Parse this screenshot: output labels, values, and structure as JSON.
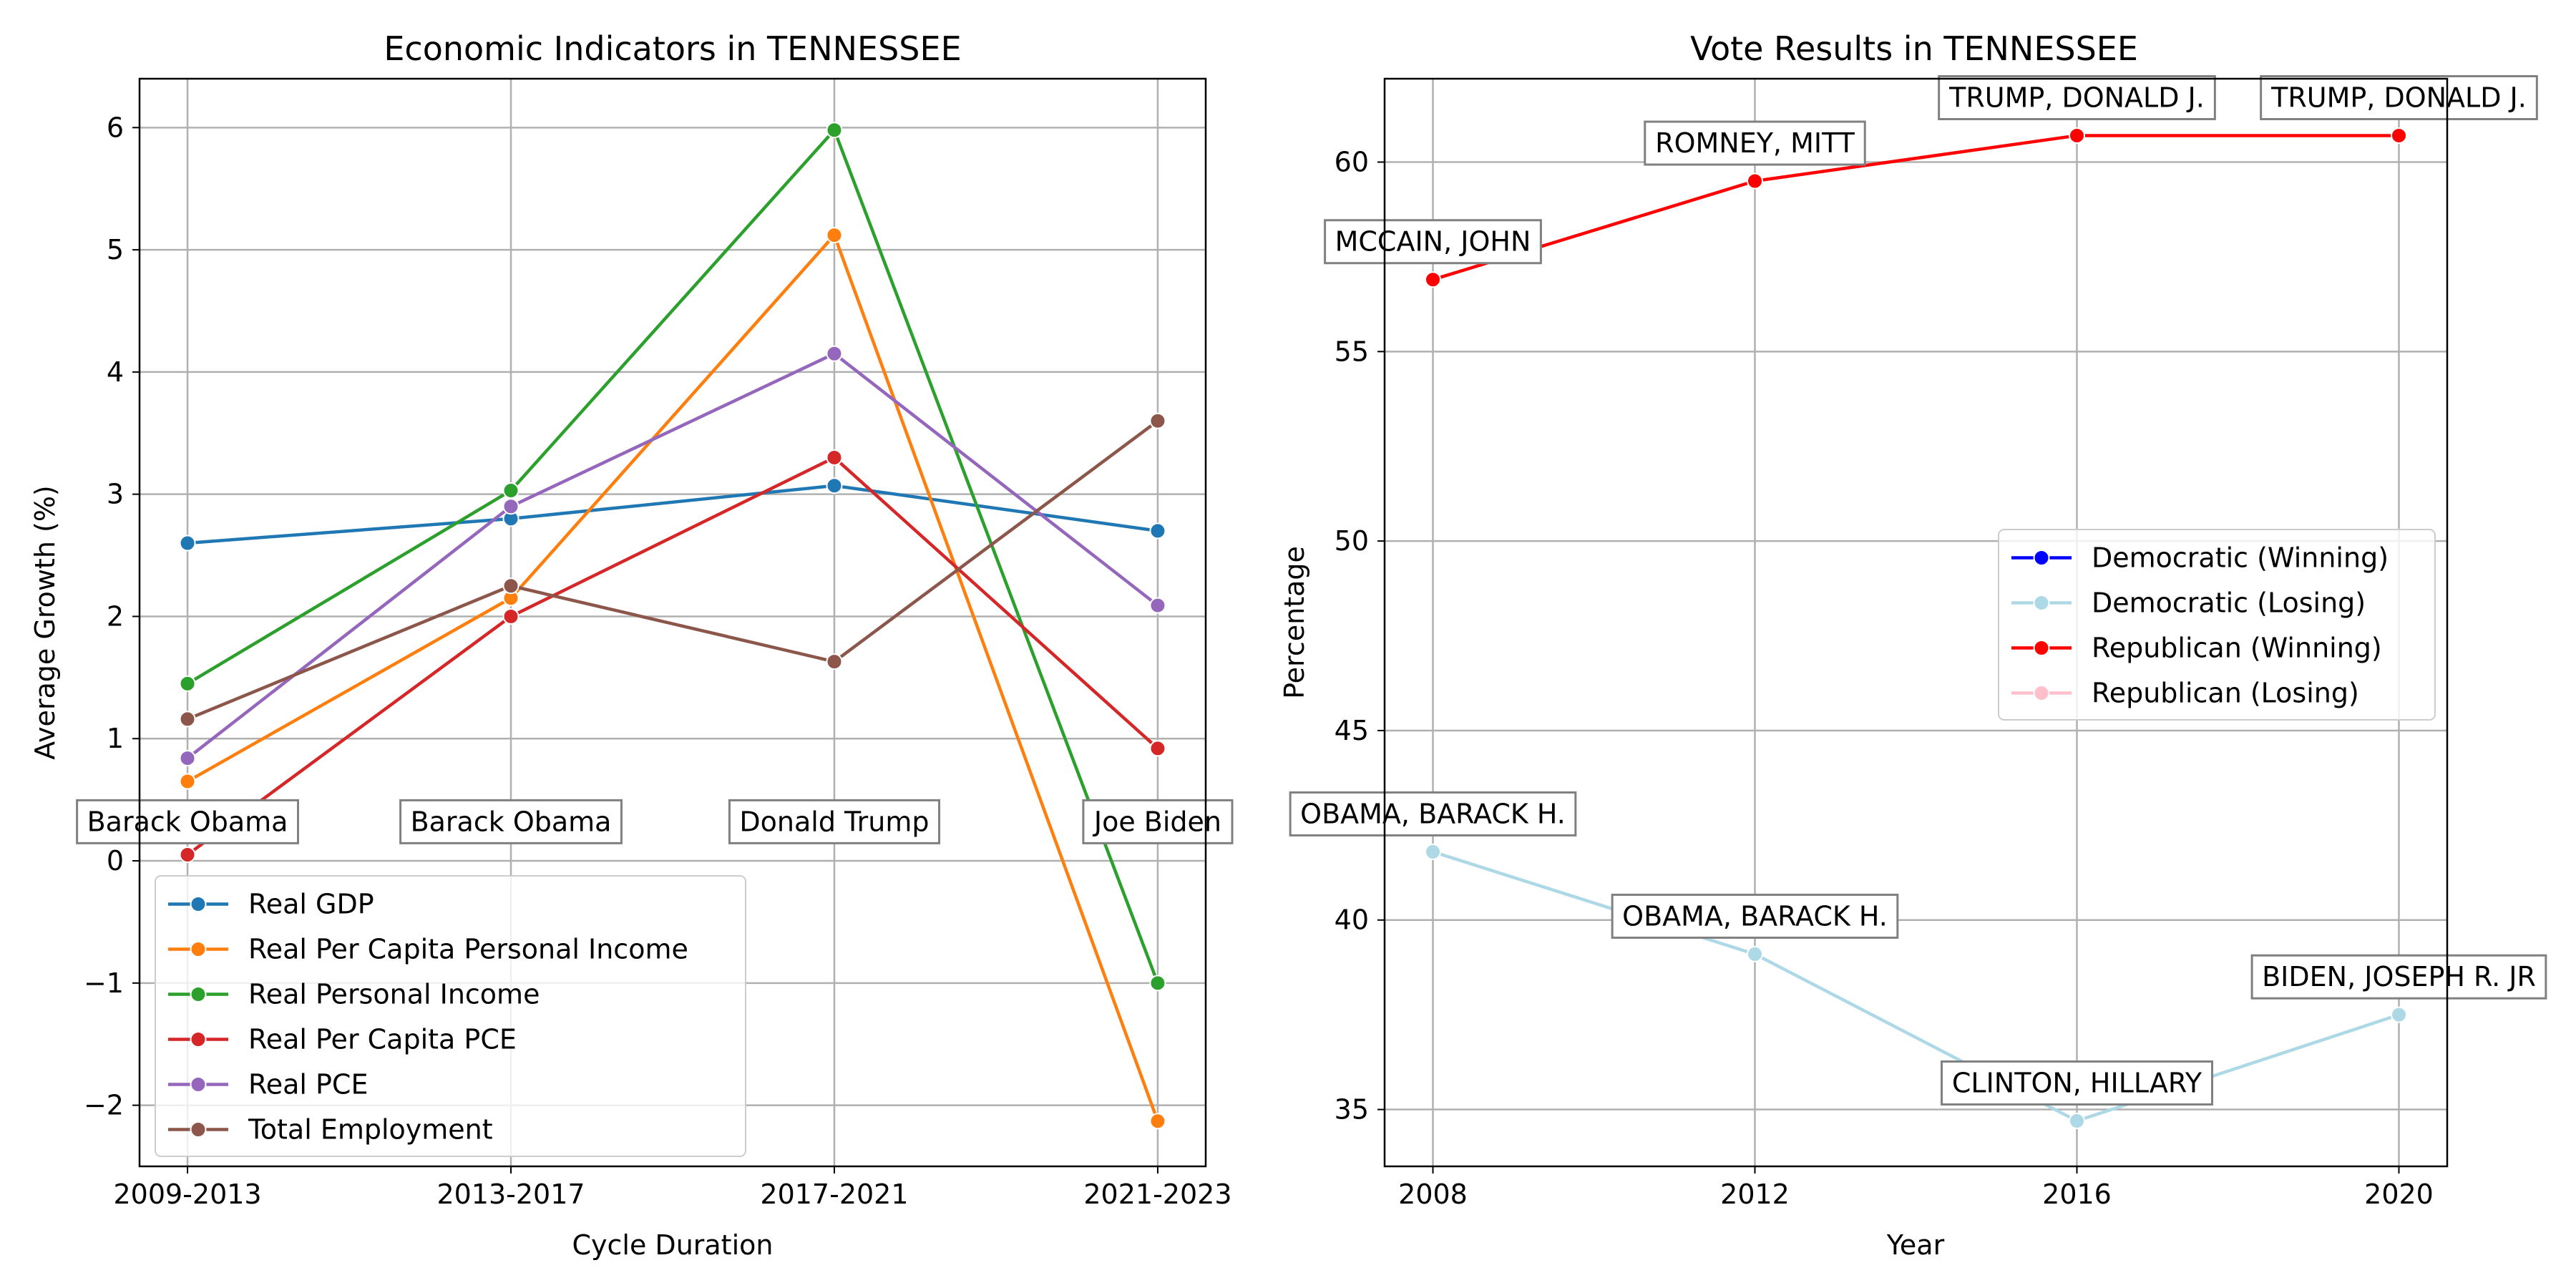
{
  "chart_data": [
    {
      "type": "line",
      "title": "Economic Indicators in TENNESSEE",
      "xlabel": "Cycle Duration",
      "ylabel": "Average Growth (%)",
      "categories": [
        "2009-2013",
        "2013-2017",
        "2017-2021",
        "2021-2023"
      ],
      "ylim": [
        -2.5,
        6.4
      ],
      "yticks": [
        -2,
        -1,
        0,
        1,
        2,
        3,
        4,
        5,
        6
      ],
      "ytick_labels": [
        "−2",
        "−1",
        "0",
        "1",
        "2",
        "3",
        "4",
        "5",
        "6"
      ],
      "grid": true,
      "legend_position": "lower-left",
      "series": [
        {
          "name": "Real GDP",
          "color": "#1f77b4",
          "values": [
            2.6,
            2.8,
            3.07,
            2.7
          ]
        },
        {
          "name": "Real Per Capita Personal Income",
          "color": "#ff7f0e",
          "values": [
            0.65,
            2.15,
            5.12,
            -2.13
          ]
        },
        {
          "name": "Real Personal Income",
          "color": "#2ca02c",
          "values": [
            1.45,
            3.03,
            5.98,
            -1.0
          ]
        },
        {
          "name": "Real Per Capita PCE",
          "color": "#d62728",
          "values": [
            0.05,
            2.0,
            3.3,
            0.92
          ]
        },
        {
          "name": "Real PCE",
          "color": "#9467bd",
          "values": [
            0.84,
            2.9,
            4.15,
            2.09
          ]
        },
        {
          "name": "Total Employment",
          "color": "#8c564b",
          "values": [
            1.16,
            2.25,
            1.63,
            3.6
          ]
        }
      ],
      "annotations": [
        {
          "text": "Barack Obama",
          "x": "2009-2013",
          "y": 0.32
        },
        {
          "text": "Barack Obama",
          "x": "2013-2017",
          "y": 0.32
        },
        {
          "text": "Donald Trump",
          "x": "2017-2021",
          "y": 0.32
        },
        {
          "text": "Joe Biden",
          "x": "2021-2023",
          "y": 0.32
        }
      ]
    },
    {
      "type": "line",
      "title": "Vote Results in TENNESSEE",
      "xlabel": "Year",
      "ylabel": "Percentage",
      "xlim": [
        2007.4,
        2020.6
      ],
      "ylim": [
        33.5,
        62.2
      ],
      "xticks": [
        2008,
        2012,
        2016,
        2020
      ],
      "yticks": [
        35,
        40,
        45,
        50,
        55,
        60
      ],
      "grid": true,
      "legend_position": "center-right",
      "legend": [
        {
          "name": "Democratic (Winning)",
          "color": "#0000ff"
        },
        {
          "name": "Democratic (Losing)",
          "color": "#add8e6"
        },
        {
          "name": "Republican (Winning)",
          "color": "#ff0000"
        },
        {
          "name": "Republican (Losing)",
          "color": "#ffc0cb"
        }
      ],
      "series": [
        {
          "name": "Republican (Winning)",
          "color": "#ff0000",
          "x": [
            2008,
            2012,
            2016,
            2020
          ],
          "values": [
            56.9,
            59.5,
            60.7,
            60.7
          ]
        },
        {
          "name": "Democratic (Losing)",
          "color": "#add8e6",
          "x": [
            2008,
            2012,
            2016,
            2020
          ],
          "values": [
            41.8,
            39.1,
            34.7,
            37.5
          ]
        }
      ],
      "annotations": [
        {
          "text": "MCCAIN, JOHN",
          "x": 2008,
          "y": 57.9
        },
        {
          "text": "ROMNEY, MITT",
          "x": 2012,
          "y": 60.5
        },
        {
          "text": "TRUMP, DONALD J.",
          "x": 2016,
          "y": 61.7
        },
        {
          "text": "TRUMP, DONALD J.",
          "x": 2020,
          "y": 61.7
        },
        {
          "text": "OBAMA, BARACK H.",
          "x": 2008,
          "y": 42.8
        },
        {
          "text": "OBAMA, BARACK H.",
          "x": 2012,
          "y": 40.1
        },
        {
          "text": "CLINTON, HILLARY",
          "x": 2016,
          "y": 35.7
        },
        {
          "text": "BIDEN, JOSEPH R. JR",
          "x": 2020,
          "y": 38.5
        }
      ]
    }
  ]
}
